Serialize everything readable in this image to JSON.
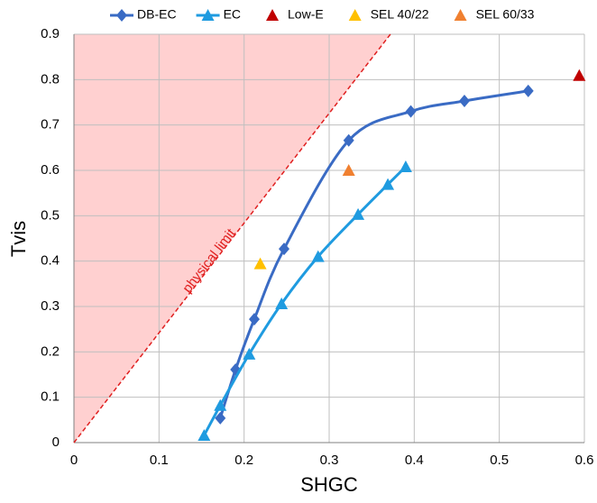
{
  "chart_data": {
    "type": "scatter",
    "x_label": "SHGC",
    "y_label": "Tvis",
    "xlim": [
      0,
      0.6
    ],
    "ylim": [
      0,
      0.9
    ],
    "xticks": [
      0,
      0.1,
      0.2,
      0.3,
      0.4,
      0.5,
      0.6
    ],
    "yticks": [
      0,
      0.1,
      0.2,
      0.3,
      0.4,
      0.5,
      0.6,
      0.7,
      0.8,
      0.9
    ],
    "grid": true,
    "legend": "top",
    "series": [
      {
        "name": "DB-EC",
        "color": "#3a6bc4",
        "marker": "diamond",
        "line": true,
        "x": [
          0.172,
          0.19,
          0.212,
          0.247,
          0.323,
          0.396,
          0.459,
          0.534
        ],
        "y": [
          0.054,
          0.161,
          0.272,
          0.427,
          0.666,
          0.73,
          0.753,
          0.775
        ]
      },
      {
        "name": "EC",
        "color": "#1f9be0",
        "marker": "triangle",
        "line": true,
        "x": [
          0.153,
          0.172,
          0.206,
          0.244,
          0.287,
          0.334,
          0.369,
          0.39
        ],
        "y": [
          0.016,
          0.082,
          0.195,
          0.306,
          0.41,
          0.503,
          0.569,
          0.608
        ]
      },
      {
        "name": "Low-E",
        "color": "#c00000",
        "marker": "triangle",
        "line": false,
        "x": [
          0.594
        ],
        "y": [
          0.809
        ]
      },
      {
        "name": "SEL 40/22",
        "color": "#ffc000",
        "marker": "triangle",
        "line": false,
        "x": [
          0.219
        ],
        "y": [
          0.394
        ]
      },
      {
        "name": "SEL 60/33",
        "color": "#f08030",
        "marker": "triangle",
        "line": false,
        "x": [
          0.323
        ],
        "y": [
          0.6
        ]
      }
    ],
    "limit_line": {
      "label": "physical limit",
      "color": "#e02020",
      "x": [
        0,
        0.372
      ],
      "y": [
        0,
        0.9
      ]
    }
  }
}
